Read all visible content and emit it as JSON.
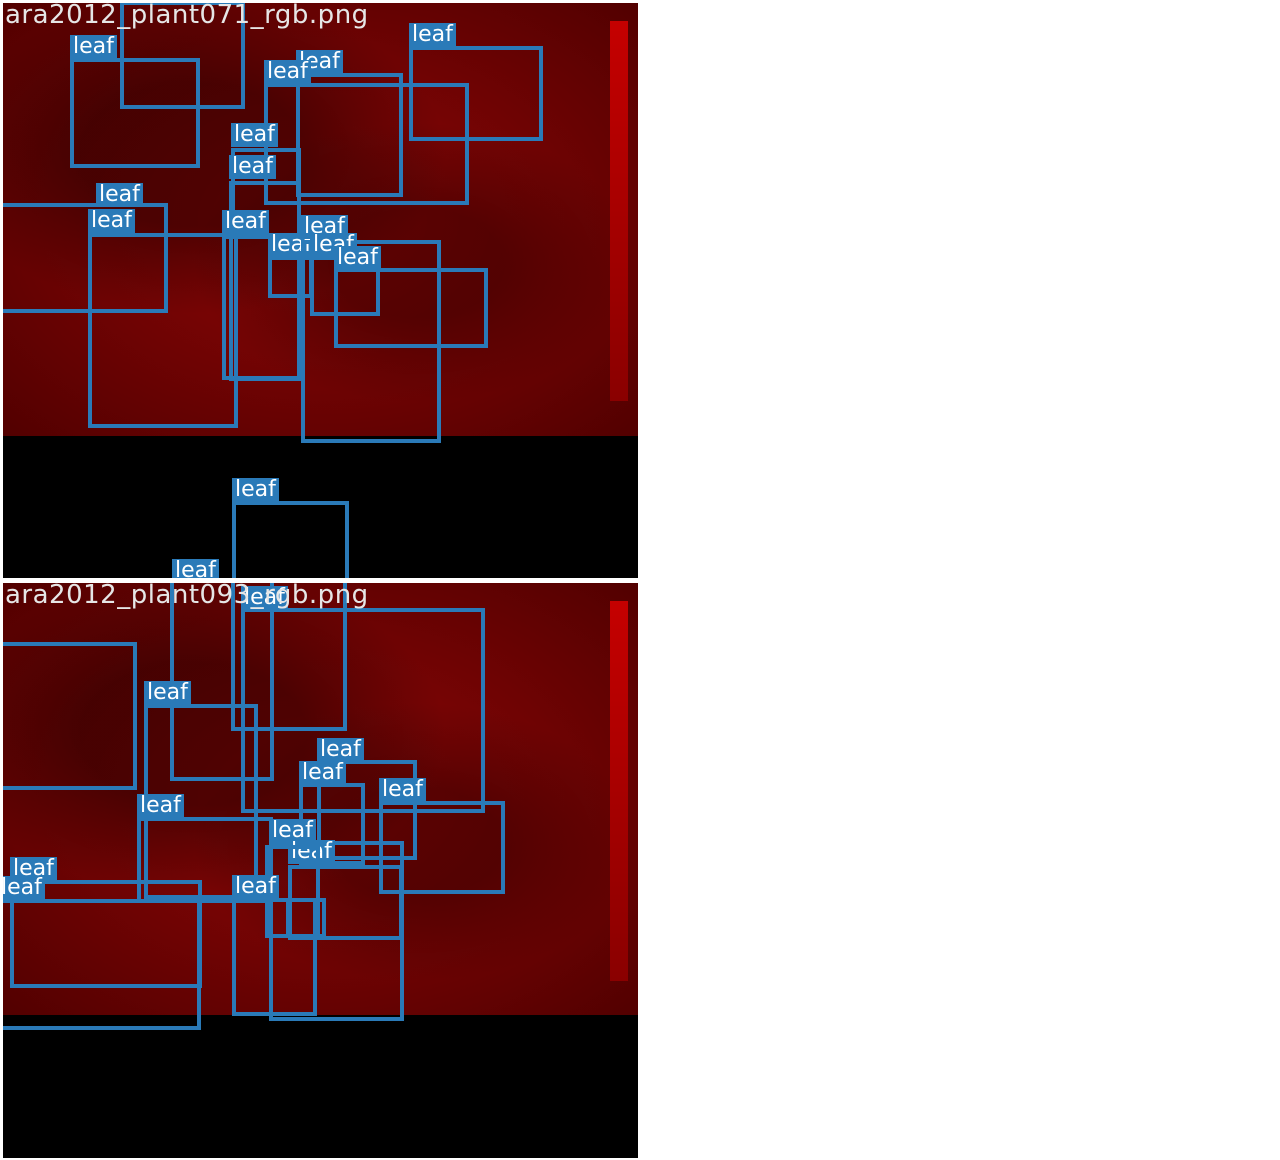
{
  "panels": [
    {
      "filename": "ara2012_plant071_rgb.png",
      "label": "leaf"
    },
    {
      "filename": "ara2012_plant093_rgb.png",
      "label": "leaf"
    }
  ],
  "colors": {
    "box": "#2a7ab8",
    "label_text": "#ffffff",
    "background": "#8d0606"
  }
}
